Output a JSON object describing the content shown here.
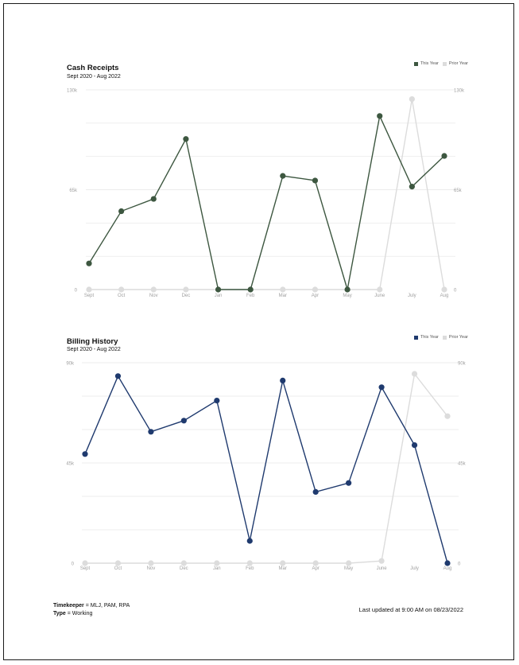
{
  "colors": {
    "cash_this_year": "#3d5740",
    "billing_this_year": "#1f3a6e",
    "prior_year": "#dcdcdc",
    "grid": "#e6e6e6",
    "tick": "#a0a0a0"
  },
  "chart_data": [
    {
      "type": "line",
      "title": "Cash Receipts",
      "subtitle": "Sept 2020 - Aug 2022",
      "categories": [
        "Sept",
        "Oct",
        "Nov",
        "Dec",
        "Jan",
        "Feb",
        "Mar",
        "Apr",
        "May",
        "June",
        "July",
        "Aug"
      ],
      "ylim": [
        0,
        130000
      ],
      "yticks": [
        0,
        65000,
        130000
      ],
      "ytick_labels": [
        "0",
        "65k",
        "130k"
      ],
      "grid": true,
      "legend_position": "top-right",
      "series": [
        {
          "name": "This Year",
          "color": "#3d5740",
          "values": [
            17000,
            51000,
            59000,
            98000,
            0,
            0,
            74000,
            71000,
            0,
            113000,
            67000,
            87000
          ]
        },
        {
          "name": "Prior Year",
          "color": "#dcdcdc",
          "values": [
            0,
            0,
            0,
            0,
            0,
            0,
            0,
            0,
            0,
            0,
            124000,
            0
          ]
        }
      ]
    },
    {
      "type": "line",
      "title": "Billing History",
      "subtitle": "Sept 2020 - Aug 2022",
      "categories": [
        "Sept",
        "Oct",
        "Nov",
        "Dec",
        "Jan",
        "Feb",
        "Mar",
        "Apr",
        "May",
        "June",
        "July",
        "Aug"
      ],
      "ylim": [
        0,
        90000
      ],
      "yticks": [
        0,
        45000,
        90000
      ],
      "ytick_labels": [
        "0",
        "45k",
        "90k"
      ],
      "grid": true,
      "legend_position": "top-right",
      "series": [
        {
          "name": "This Year",
          "color": "#1f3a6e",
          "values": [
            49000,
            84000,
            59000,
            64000,
            73000,
            10000,
            82000,
            32000,
            36000,
            79000,
            53000,
            0
          ]
        },
        {
          "name": "Prior Year",
          "color": "#dcdcdc",
          "values": [
            0,
            0,
            0,
            0,
            0,
            0,
            0,
            0,
            0,
            1000,
            85000,
            66000
          ]
        }
      ]
    }
  ],
  "footer": {
    "timekeeper_label": "Timekeeper",
    "timekeeper_value": " = MLJ, PAM, RPA",
    "type_label": "Type",
    "type_value": " = Working",
    "last_updated": "Last updated at 9:00 AM on 08/23/2022"
  }
}
